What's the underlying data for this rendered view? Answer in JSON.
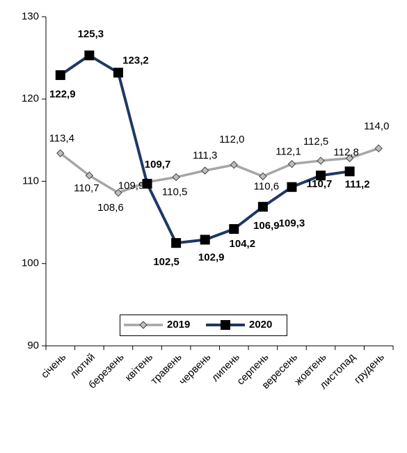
{
  "chart_data": {
    "type": "line",
    "categories": [
      "січень",
      "лютий",
      "березень",
      "квітень",
      "травень",
      "червень",
      "липень",
      "серпень",
      "вересень",
      "жовтень",
      "листопад",
      "грудень"
    ],
    "ylim": [
      90,
      130
    ],
    "yticks": [
      90,
      100,
      110,
      120,
      130
    ],
    "grid": false,
    "legend": "bottom",
    "series": [
      {
        "name": "2019",
        "color": "#a6a6a6",
        "marker": "diamond",
        "values": [
          113.4,
          110.7,
          108.6,
          109.9,
          110.5,
          111.3,
          112.0,
          110.6,
          112.1,
          112.5,
          112.8,
          114.0
        ],
        "value_labels": [
          "113,4",
          "110,7",
          "108,6",
          "109,9",
          "110,5",
          "111,3",
          "112,0",
          "110,6",
          "112,1",
          "112,5",
          "112,8",
          "114,0"
        ]
      },
      {
        "name": "2020",
        "color": "#1f3864",
        "marker": "square",
        "values": [
          122.9,
          125.3,
          123.2,
          109.7,
          102.5,
          102.9,
          104.2,
          106.9,
          109.3,
          110.7,
          111.2,
          null
        ],
        "value_labels": [
          "122,9",
          "125,3",
          "123,2",
          "109,7",
          "102,5",
          "102,9",
          "104,2",
          "106,9",
          "109,3",
          "110,7",
          "111,2",
          null
        ]
      }
    ]
  }
}
